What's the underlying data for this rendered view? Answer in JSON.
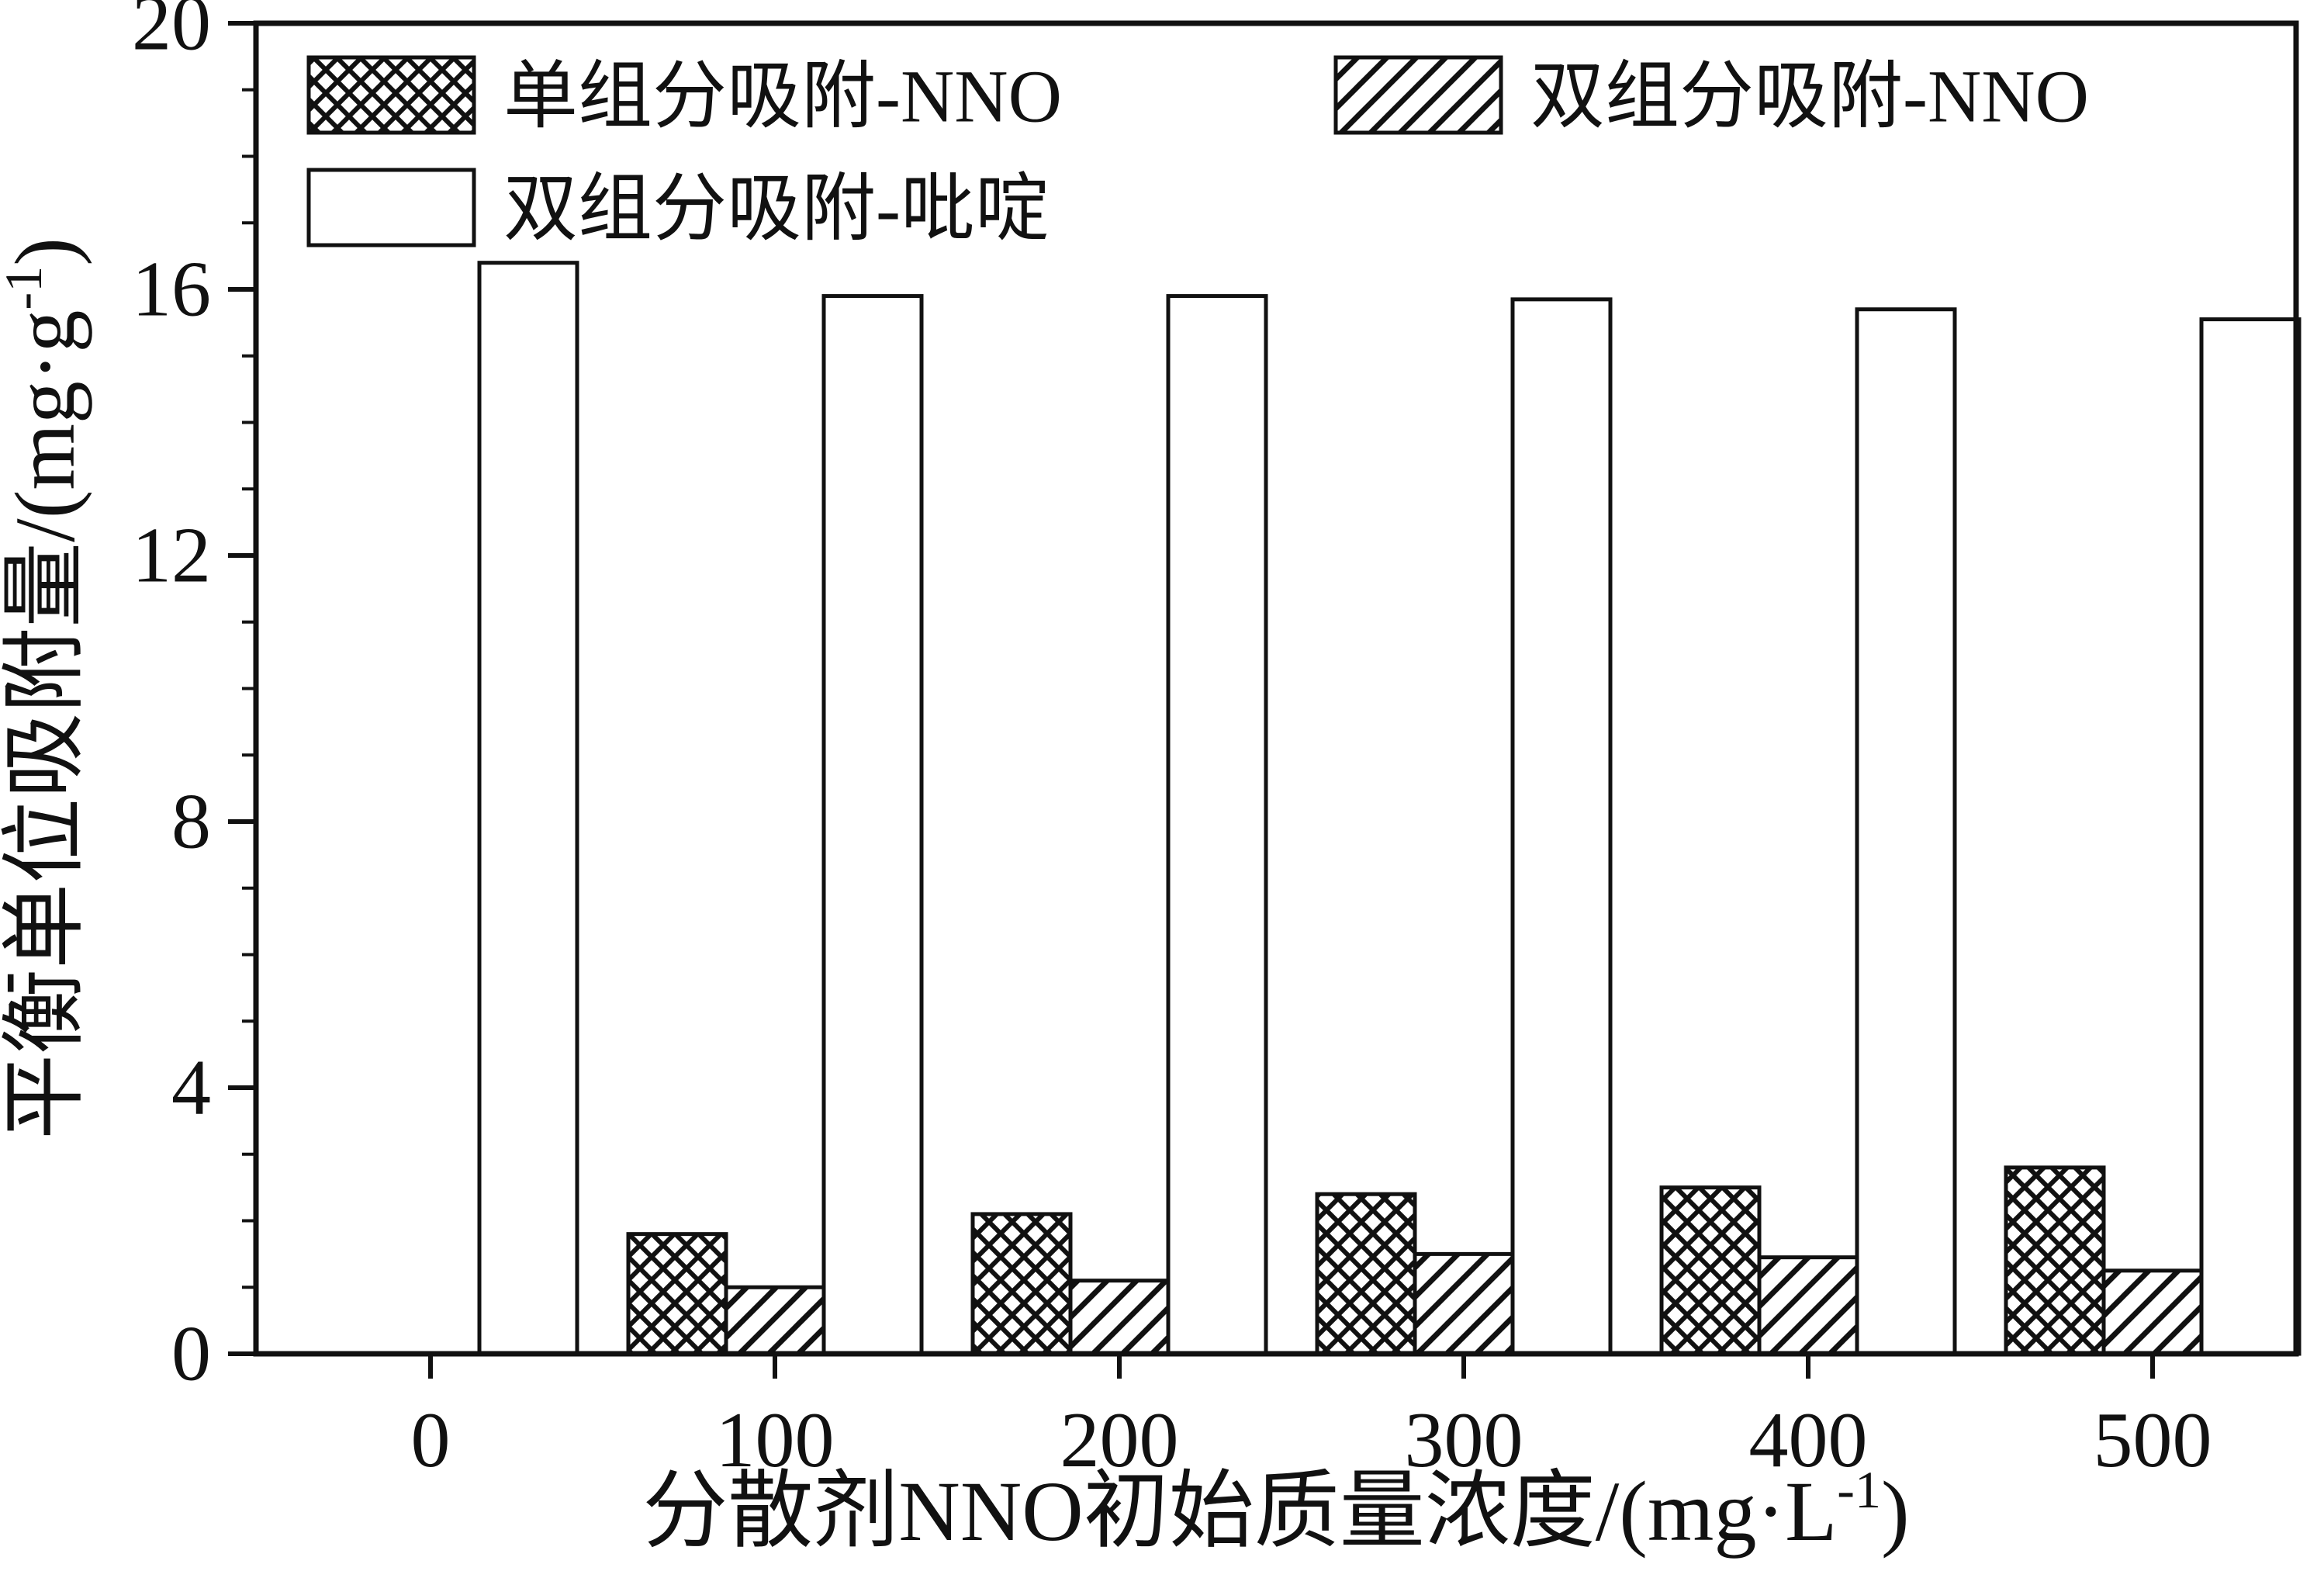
{
  "figure": {
    "background": "#ffffff",
    "ink_color": "#111111"
  },
  "chart_data": {
    "type": "bar",
    "title": "",
    "categories": [
      "0",
      "100",
      "200",
      "300",
      "400",
      "500"
    ],
    "series": [
      {
        "name": "单组分吸附-NNO",
        "pattern": "crosshatch",
        "values": [
          0,
          1.8,
          2.1,
          2.4,
          2.5,
          2.8
        ]
      },
      {
        "name": "双组分吸附-NNO",
        "pattern": "diagonal",
        "values": [
          0,
          1.0,
          1.1,
          1.5,
          1.45,
          1.25
        ]
      },
      {
        "name": "双组分吸附-吡啶",
        "pattern": "plain",
        "values": [
          16.4,
          15.9,
          15.9,
          15.85,
          15.7,
          15.55
        ]
      }
    ],
    "xlabel": {
      "pre": "分散剂NNO初始质量浓度/(mg·L",
      "sup": "-1",
      "post": ")"
    },
    "ylabel": {
      "pre": "平衡单位吸附量/(mg·g",
      "sup": "-1",
      "post": ")"
    },
    "xlabel_full": "分散剂NNO初始质量浓度/(mg·L⁻¹)",
    "ylabel_full": "平衡单位吸附量/(mg·g⁻¹)",
    "ylim": [
      0,
      20
    ],
    "yticks": [
      0,
      4,
      8,
      12,
      16,
      20
    ],
    "minor_tick_step": 1,
    "grid": false,
    "legend_position": "top-left-inside",
    "bar_fill": "#ffffff",
    "stroke_color": "#111111"
  }
}
